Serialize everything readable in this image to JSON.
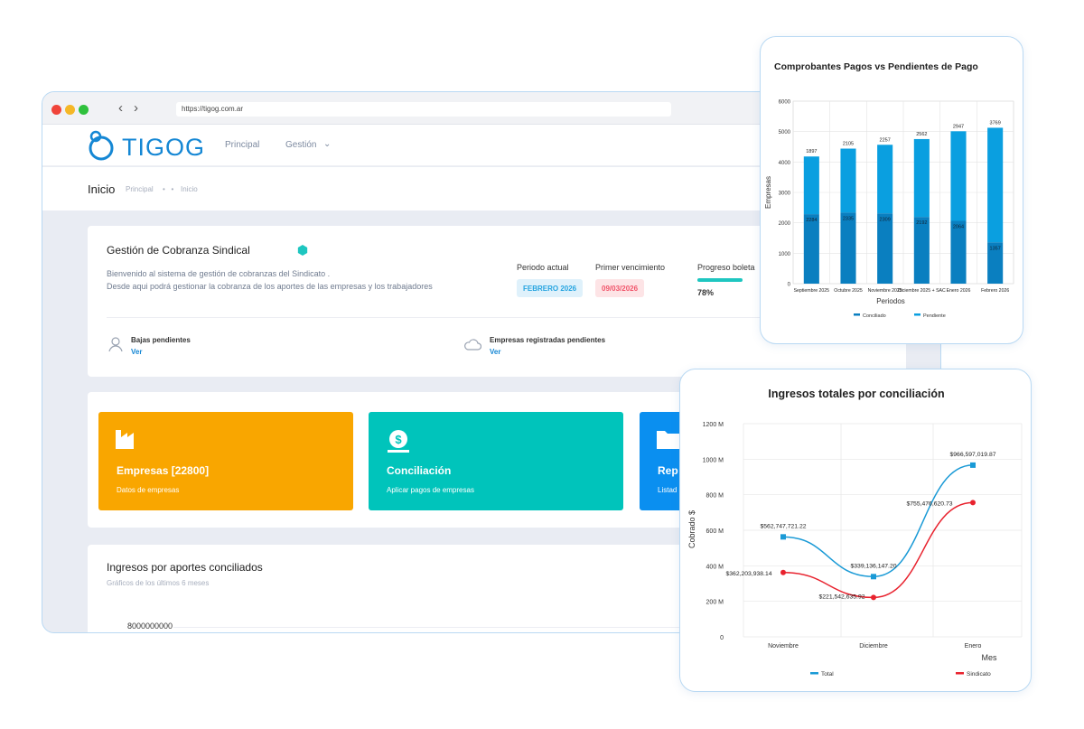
{
  "browser": {
    "url": "https://tigog.com.ar"
  },
  "header": {
    "brand": "TIGOG",
    "nav": [
      {
        "label": "Principal"
      },
      {
        "label": "Gestión"
      }
    ]
  },
  "subheader": {
    "title": "Inicio",
    "breadcrumb": [
      "Principal",
      "Inicio"
    ]
  },
  "overview": {
    "title": "Gestión de Cobranza Sindical",
    "description_1": "Bienvenido al sistema de gestión de cobranzas del Sindicato .",
    "description_2": "Desde aqui podrá gestionar la cobranza de los aportes de las empresas y los trabajadores",
    "periodo_label": "Periodo actual",
    "periodo_value": "FEBRERO 2026",
    "vencimiento_label": "Primer vencimiento",
    "vencimiento_value": "09/03/2026",
    "progreso_label": "Progreso boleta",
    "progreso_value": "78%",
    "progreso_fraction": 0.78,
    "bajas_label": "Bajas pendientes",
    "bajas_link": "Ver",
    "empresas_label": "Empresas registradas pendientes",
    "empresas_link": "Ver"
  },
  "tiles": [
    {
      "title": "Empresas [22800]",
      "subtitle": "Datos de empresas",
      "color": "#f9a600",
      "icon": "factory-icon"
    },
    {
      "title": "Conciliación",
      "subtitle": "Aplicar pagos de empresas",
      "color": "#00c4bb",
      "icon": "coin-icon"
    },
    {
      "title": "Rep",
      "subtitle": "Listad",
      "color": "#0a8ff0",
      "icon": "folder-icon"
    }
  ],
  "ingresos": {
    "title": "Ingresos por aportes conciliados",
    "subtitle": "Gráficos de los últimos 6 meses",
    "axis_top": "8000000000"
  },
  "chart_data": [
    {
      "type": "bar",
      "title": "Comprobantes Pagos vs Pendientes de Pago",
      "xlabel": "Periodos",
      "ylabel": "Empresas",
      "ylim": [
        0,
        6000
      ],
      "yticks": [
        "0",
        "1000",
        "2000",
        "3000",
        "4000",
        "5000",
        "6000"
      ],
      "categories": [
        "Septiembre 2025",
        "Octubre 2025",
        "Noviembre 2025",
        "Diciembre 2025 + SAC",
        "Enero 2026",
        "Febrero 2026"
      ],
      "stacked": true,
      "grid": true,
      "legend": "bottom",
      "series": [
        {
          "name": "Conciliado",
          "values": [
            2284,
            2335,
            2309,
            2192,
            2064,
            1357
          ],
          "color": "#0a7fc0"
        },
        {
          "name": "Pendiente",
          "values": [
            1897,
            2105,
            2257,
            2562,
            2947,
            3769
          ],
          "color": "#0a9fe0"
        }
      ]
    },
    {
      "type": "line",
      "title": "Ingresos totales por conciliación",
      "xlabel": "Mes",
      "ylabel": "Cobrado $",
      "ylim": [
        0,
        1200000000
      ],
      "yticks": [
        "0",
        "200 M",
        "400 M",
        "600 M",
        "800 M",
        "1000 M",
        "1200 M"
      ],
      "categories": [
        "Noviembre",
        "Diciembre",
        "Enero"
      ],
      "grid": true,
      "legend": "bottom",
      "series": [
        {
          "name": "Total",
          "values": [
            562747721.22,
            339136147.2,
            966597019.87
          ],
          "labels": [
            "$562,747,721.22",
            "$339,136,147.20",
            "$966,597,019.87"
          ],
          "color": "#1a9ad6"
        },
        {
          "name": "Sindicato",
          "values": [
            362203938.14,
            221542635.92,
            755476620.73
          ],
          "labels": [
            "$362,203,938.14",
            "$221,542,635.92",
            "$755,476,620.73"
          ],
          "color": "#e8222e"
        }
      ]
    }
  ]
}
